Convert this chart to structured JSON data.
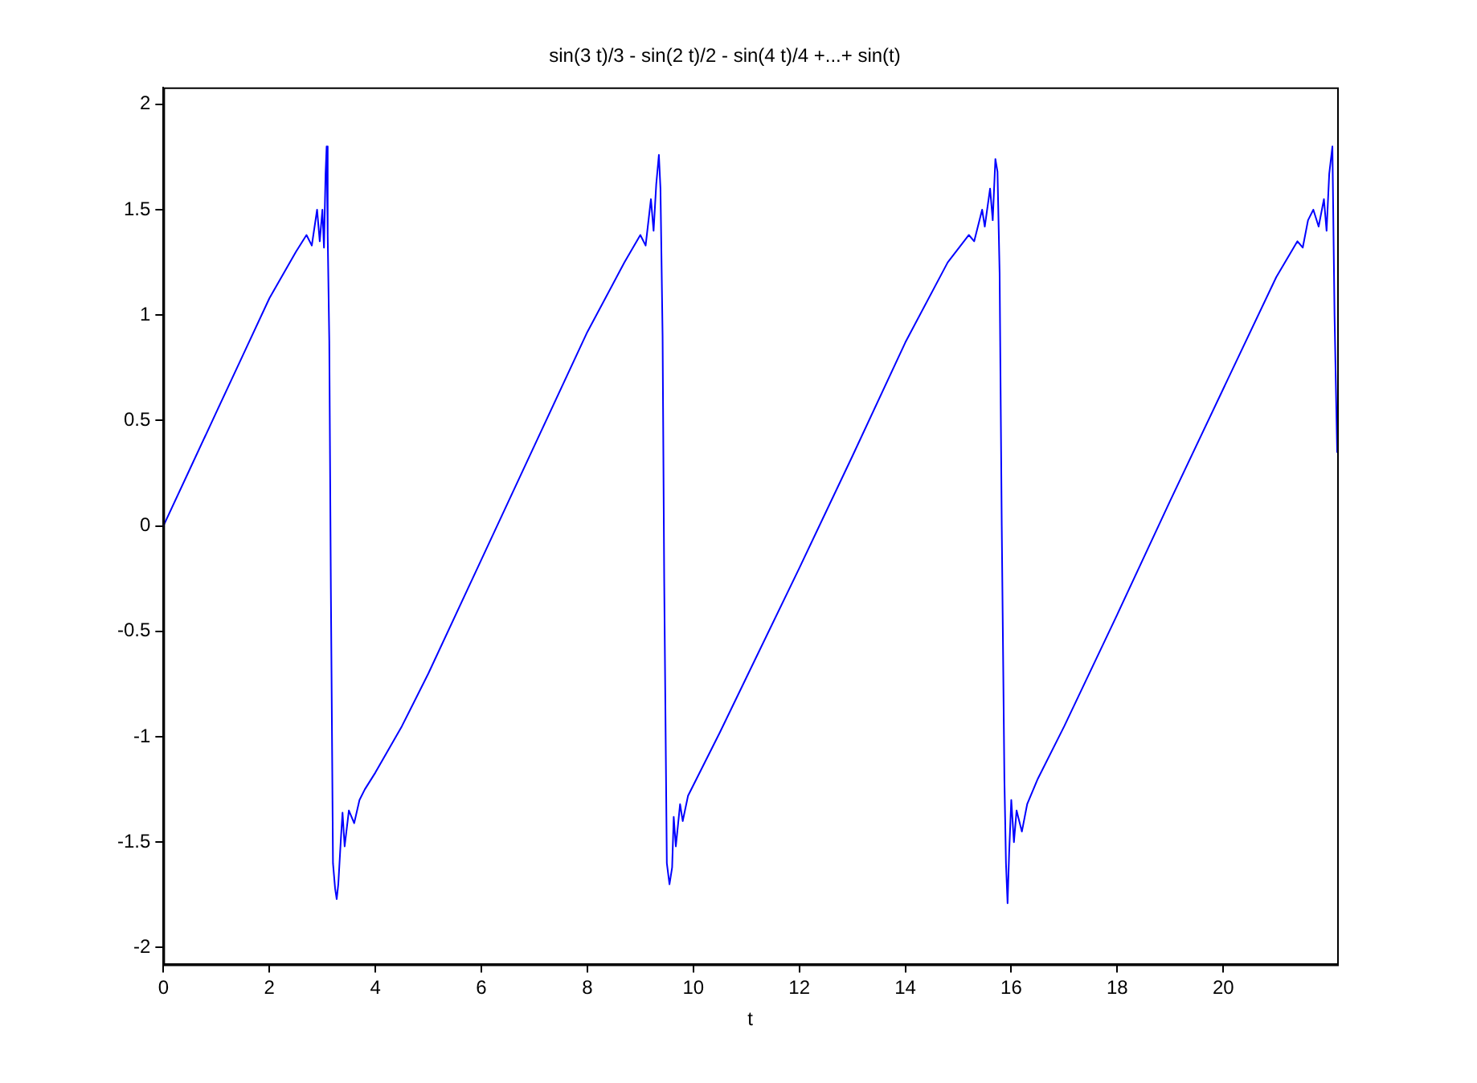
{
  "chart_data": {
    "type": "line",
    "title": "sin(3 t)/3 - sin(2 t)/2 - sin(4 t)/4 +...+ sin(t)",
    "xlabel": "t",
    "x": [
      0,
      0.5,
      1,
      1.5,
      2,
      2.5,
      2.7,
      2.8,
      2.9,
      2.95,
      3.0,
      3.03,
      3.06,
      3.08,
      3.1,
      3.13,
      3.16,
      3.2,
      3.24,
      3.27,
      3.3,
      3.35,
      3.38,
      3.42,
      3.5,
      3.6,
      3.7,
      3.8,
      4,
      4.5,
      5,
      6,
      7,
      8,
      8.7,
      9.0,
      9.1,
      9.2,
      9.25,
      9.3,
      9.35,
      9.38,
      9.42,
      9.45,
      9.5,
      9.55,
      9.6,
      9.63,
      9.67,
      9.75,
      9.8,
      9.9,
      10.1,
      10.5,
      11,
      12,
      13,
      14,
      14.8,
      15.2,
      15.3,
      15.45,
      15.5,
      15.6,
      15.65,
      15.7,
      15.74,
      15.78,
      15.82,
      15.87,
      15.9,
      15.93,
      15.96,
      16.0,
      16.05,
      16.1,
      16.2,
      16.3,
      16.5,
      17,
      18,
      19,
      20,
      21,
      21.4,
      21.5,
      21.6,
      21.7,
      21.8,
      21.9,
      21.95,
      22.0,
      22.06,
      22.1,
      22.15
    ],
    "series": [
      {
        "color": "#0000ff",
        "values": [
          0,
          0.27,
          0.54,
          0.81,
          1.08,
          1.3,
          1.38,
          1.33,
          1.5,
          1.35,
          1.5,
          1.32,
          1.67,
          1.8,
          1.38,
          0.88,
          -0.3,
          -1.6,
          -1.72,
          -1.77,
          -1.7,
          -1.48,
          -1.36,
          -1.52,
          -1.35,
          -1.41,
          -1.3,
          -1.25,
          -1.17,
          -0.95,
          -0.7,
          -0.16,
          0.38,
          0.92,
          1.25,
          1.38,
          1.33,
          1.55,
          1.4,
          1.62,
          1.76,
          1.6,
          0.9,
          -0.25,
          -1.6,
          -1.7,
          -1.62,
          -1.38,
          -1.52,
          -1.32,
          -1.4,
          -1.28,
          -1.18,
          -0.98,
          -0.72,
          -0.2,
          0.33,
          0.87,
          1.25,
          1.38,
          1.35,
          1.5,
          1.42,
          1.6,
          1.45,
          1.74,
          1.68,
          1.2,
          0,
          -1.2,
          -1.6,
          -1.79,
          -1.55,
          -1.3,
          -1.5,
          -1.35,
          -1.45,
          -1.32,
          -1.2,
          -0.95,
          -0.42,
          0.12,
          0.65,
          1.18,
          1.35,
          1.32,
          1.45,
          1.5,
          1.42,
          1.55,
          1.4,
          1.67,
          1.8,
          1.0,
          0.35
        ]
      }
    ],
    "xlim": [
      0,
      22.15
    ],
    "ylim": [
      -2.08,
      2.08
    ],
    "xticks": [
      0,
      2,
      4,
      6,
      8,
      10,
      12,
      14,
      16,
      18,
      20
    ],
    "yticks": [
      -2,
      -1.5,
      -1,
      -0.5,
      0,
      0.5,
      1,
      1.5,
      2
    ],
    "grid": false,
    "legend": false,
    "marker": "none",
    "line_style": "solid"
  }
}
